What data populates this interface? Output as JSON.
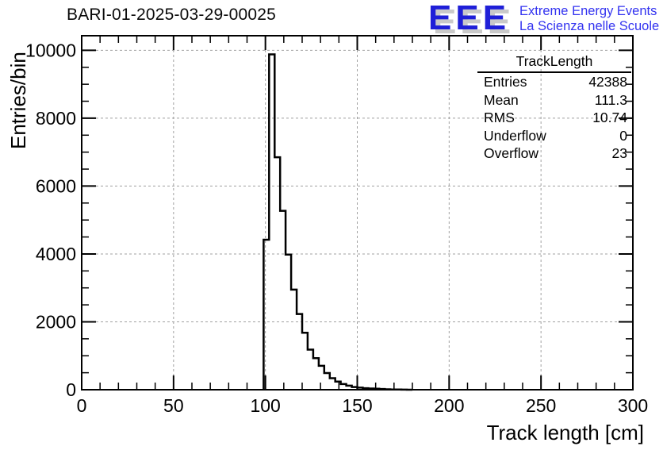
{
  "header": {
    "title": "BARI-01-2025-03-29-00025",
    "logo": {
      "acronym": "EEE",
      "line1": "Extreme Energy Events",
      "line2": "La Scienza nelle Scuole",
      "acronym_color": "#1f1fd8",
      "text_color": "#3333f0",
      "shadow_color": "#c9c9c9"
    }
  },
  "stats_box": {
    "title": "TrackLength",
    "rows": [
      {
        "label": "Entries",
        "value": "42388"
      },
      {
        "label": "Mean",
        "value": "111.3"
      },
      {
        "label": "RMS",
        "value": "10.74"
      },
      {
        "label": "Underflow",
        "value": "0"
      },
      {
        "label": "Overflow",
        "value": "23"
      }
    ]
  },
  "chart_data": {
    "type": "bar",
    "subtype": "histogram-step",
    "title": "BARI-01-2025-03-29-00025",
    "xlabel": "Track length [cm]",
    "ylabel": "Entries/bin",
    "xlim": [
      0,
      300
    ],
    "ylim": [
      0,
      10430
    ],
    "x_major_ticks": [
      0,
      50,
      100,
      150,
      200,
      250,
      300
    ],
    "x_minor_step": 10,
    "y_major_ticks": [
      0,
      2000,
      4000,
      6000,
      8000,
      10000
    ],
    "y_minor_step": 500,
    "grid": true,
    "grid_color": "#a0a0a0",
    "line_color": "#000000",
    "bins": {
      "start": 99,
      "width": 3,
      "values": [
        4420,
        9880,
        6850,
        5270,
        3980,
        2950,
        2230,
        1680,
        1180,
        930,
        705,
        490,
        340,
        240,
        165,
        120,
        80,
        60,
        45,
        35,
        28,
        20,
        12,
        8,
        4,
        2,
        1
      ]
    }
  }
}
